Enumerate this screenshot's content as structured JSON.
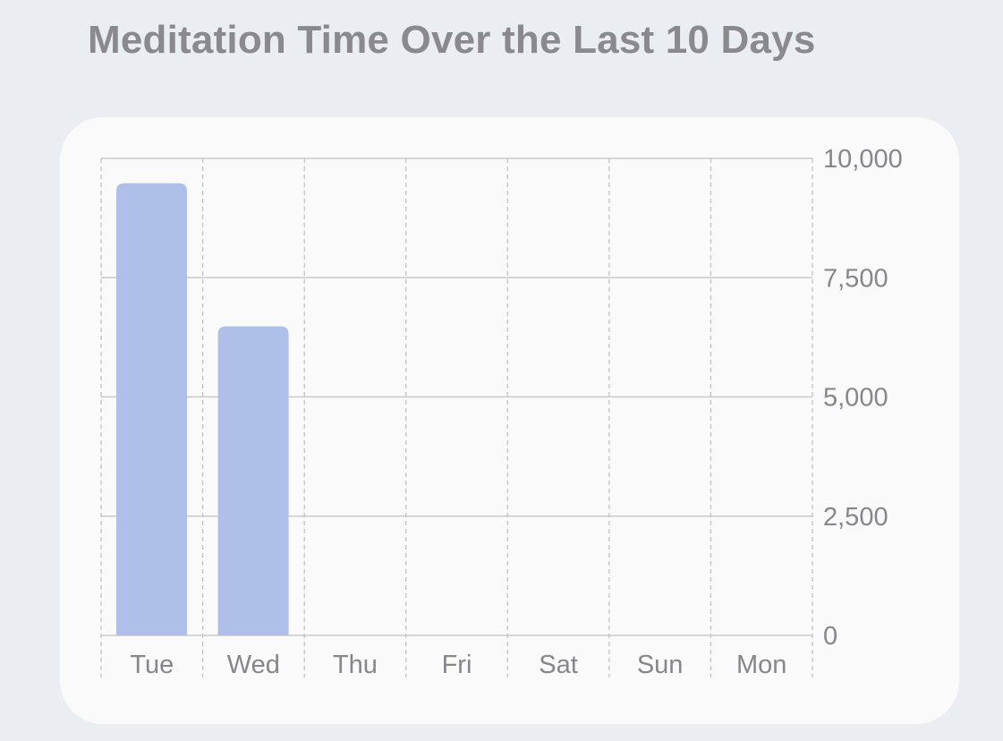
{
  "title": "Meditation Time Over the Last 10 Days",
  "colors": {
    "background": "#eaedf1",
    "card": "#fafafa",
    "bar": "#aec0ea",
    "grid_solid": "#c9c9cc",
    "grid_dashed": "#c2c2c6",
    "tick_text": "#86868b",
    "title_text": "#8a8a8e"
  },
  "chart_data": {
    "type": "bar",
    "title": "Meditation Time Over the Last 10 Days",
    "xlabel": "",
    "ylabel": "",
    "categories": [
      "Tue",
      "Wed",
      "Thu",
      "Fri",
      "Sat",
      "Sun",
      "Mon"
    ],
    "values": [
      9480,
      6480,
      0,
      0,
      0,
      0,
      0
    ],
    "ylim": [
      0,
      10000
    ],
    "yticks": [
      0,
      2500,
      5000,
      7500,
      10000
    ],
    "ytick_labels": [
      "0",
      "2,500",
      "5,000",
      "7,500",
      "10,000"
    ],
    "y_axis_position": "right",
    "grid": true
  }
}
